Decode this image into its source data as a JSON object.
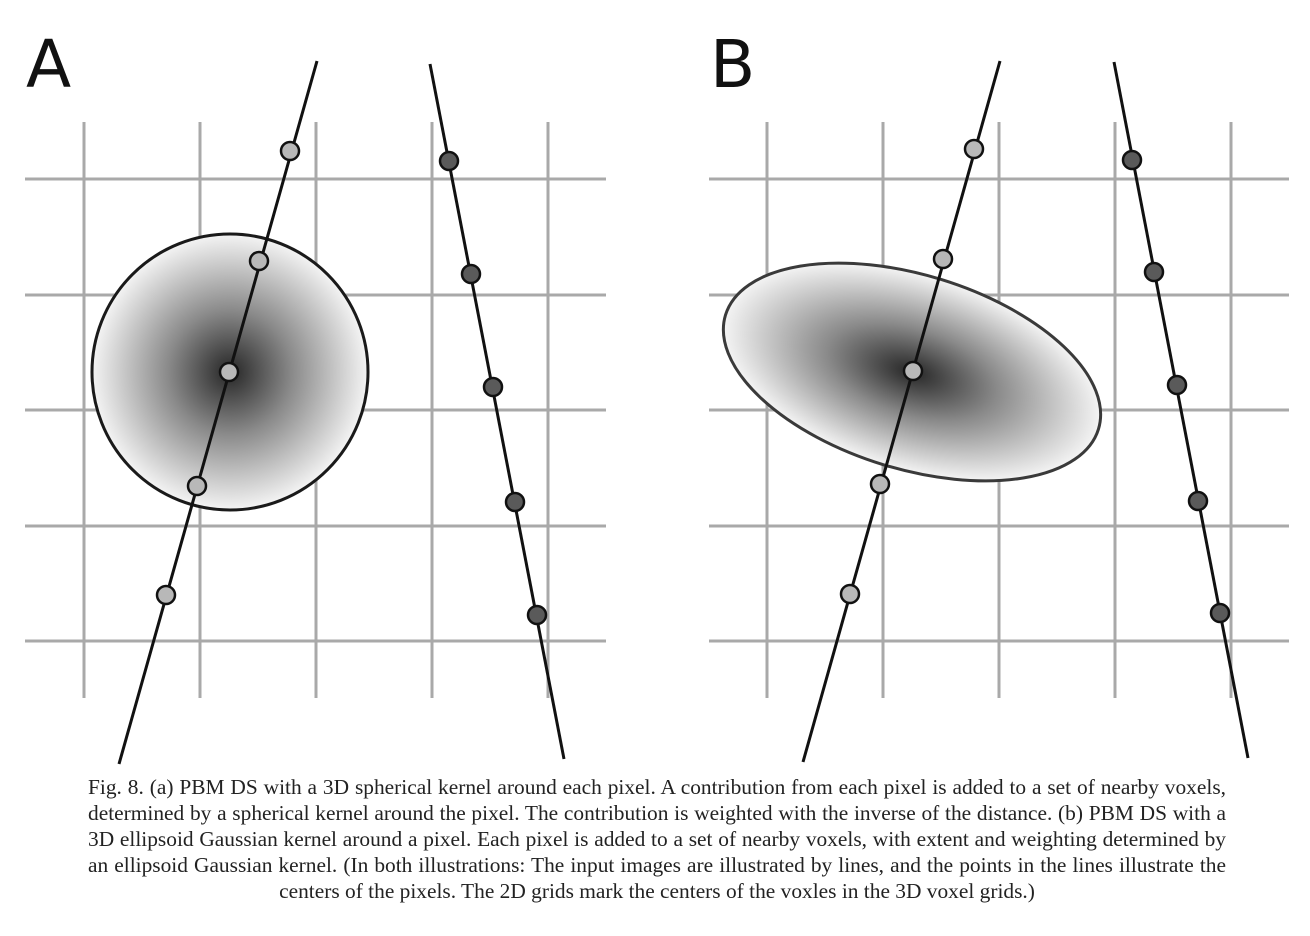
{
  "panels": [
    {
      "label": "A",
      "kernel": "sphere"
    },
    {
      "label": "B",
      "kernel": "ellipsoid"
    }
  ],
  "caption": "Fig. 8. (a) PBM DS with a 3D spherical kernel around each pixel. A contribution from each pixel is added to a set of nearby voxels, determined by a spherical kernel around the pixel. The contribution is weighted with the inverse of the distance. (b) PBM DS with a 3D ellipsoid Gaussian kernel around a pixel. Each pixel is added to a set of nearby voxels, with extent and weighting determined by an ellipsoid Gaussian kernel. (In both illustrations: The input images are illustrated by lines, and the points in the lines illustrate the centers of the pixels. The 2D grids mark the centers of the voxles in the 3D voxel grids.)",
  "colors": {
    "grid": "#a9a9a9",
    "line": "#111111",
    "pixel_light": "#b8b8b8",
    "pixel_dark": "#5a5a5a",
    "kernel_center": "#2a2a2a"
  }
}
